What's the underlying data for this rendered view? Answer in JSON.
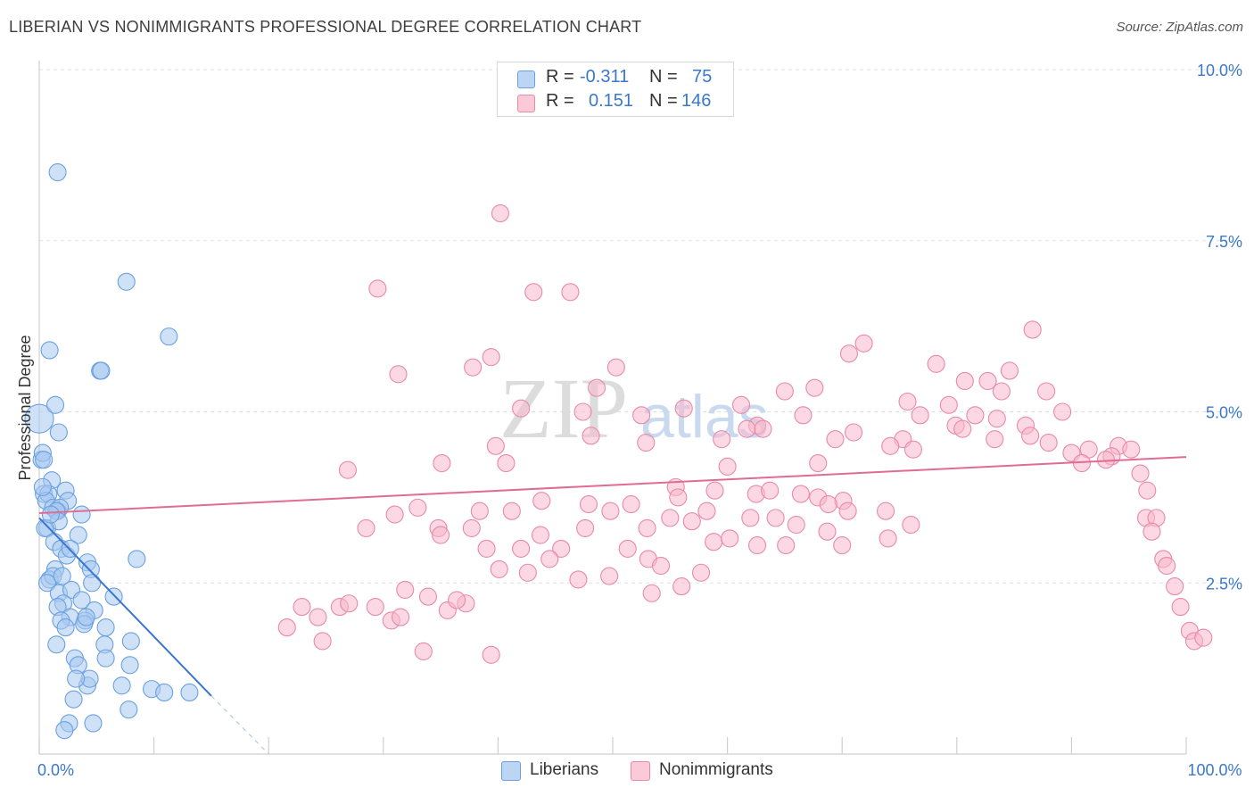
{
  "title": "LIBERIAN VS NONIMMIGRANTS PROFESSIONAL DEGREE CORRELATION CHART",
  "source": "Source: ZipAtlas.com",
  "watermark": {
    "zip": "ZIP",
    "atlas": "atlas"
  },
  "legend": {
    "rows": [
      {
        "r_label": "R =",
        "r_value": "-0.311",
        "n_label": "N =",
        "n_value": "75",
        "color": "#a8c8f0"
      },
      {
        "r_label": "R =",
        "r_value": "0.151",
        "n_label": "N =",
        "n_value": "146",
        "color": "#f8b8cc"
      }
    ]
  },
  "bottom_legend": [
    {
      "label": "Liberians",
      "color": "#a8c8f0"
    },
    {
      "label": "Nonimmigrants",
      "color": "#f8b8cc"
    }
  ],
  "chart_data": {
    "type": "scatter",
    "xlabel": "",
    "ylabel": "Professional Degree",
    "xlim": [
      0,
      100
    ],
    "ylim": [
      0,
      10
    ],
    "x_tick_labels": [
      {
        "value": 0,
        "label": "0.0%"
      },
      {
        "value": 100,
        "label": "100.0%"
      }
    ],
    "y_tick_labels": [
      {
        "value": 2.5,
        "label": "2.5%"
      },
      {
        "value": 5.0,
        "label": "5.0%"
      },
      {
        "value": 7.5,
        "label": "7.5%"
      },
      {
        "value": 10.0,
        "label": "10.0%"
      }
    ],
    "grid": true,
    "series": [
      {
        "name": "Liberians",
        "color": "#6aa0e0",
        "fill": "#a8c8f0",
        "trend": {
          "x": [
            0,
            15
          ],
          "y": [
            3.45,
            0.85
          ],
          "dash_to": [
            20,
            0
          ]
        },
        "points": [
          [
            1.6,
            8.5
          ],
          [
            7.6,
            6.9
          ],
          [
            11.3,
            6.1
          ],
          [
            0.9,
            5.9
          ],
          [
            5.3,
            5.6
          ],
          [
            5.4,
            5.6
          ],
          [
            0.0,
            4.9
          ],
          [
            1.4,
            5.1
          ],
          [
            1.7,
            4.7
          ],
          [
            0.2,
            4.3
          ],
          [
            0.3,
            4.4
          ],
          [
            0.4,
            4.3
          ],
          [
            1.1,
            4.0
          ],
          [
            0.4,
            3.8
          ],
          [
            0.8,
            3.8
          ],
          [
            2.3,
            3.85
          ],
          [
            2.5,
            3.7
          ],
          [
            0.6,
            3.7
          ],
          [
            1.2,
            3.6
          ],
          [
            1.6,
            3.55
          ],
          [
            1.8,
            3.6
          ],
          [
            1.5,
            3.55
          ],
          [
            0.7,
            3.3
          ],
          [
            1.7,
            3.4
          ],
          [
            3.7,
            3.5
          ],
          [
            3.4,
            3.2
          ],
          [
            0.5,
            3.3
          ],
          [
            1.3,
            3.1
          ],
          [
            1.9,
            3.0
          ],
          [
            2.4,
            2.9
          ],
          [
            2.7,
            3.0
          ],
          [
            4.2,
            2.8
          ],
          [
            8.5,
            2.85
          ],
          [
            1.4,
            2.7
          ],
          [
            4.5,
            2.7
          ],
          [
            0.9,
            2.55
          ],
          [
            1.2,
            2.6
          ],
          [
            0.7,
            2.5
          ],
          [
            4.6,
            2.5
          ],
          [
            1.7,
            2.35
          ],
          [
            2.8,
            2.4
          ],
          [
            3.7,
            2.25
          ],
          [
            2.1,
            2.2
          ],
          [
            1.6,
            2.15
          ],
          [
            4.8,
            2.1
          ],
          [
            2.7,
            2.0
          ],
          [
            1.9,
            1.95
          ],
          [
            4.0,
            1.95
          ],
          [
            2.3,
            1.85
          ],
          [
            3.9,
            1.9
          ],
          [
            5.8,
            1.85
          ],
          [
            1.5,
            1.6
          ],
          [
            5.7,
            1.6
          ],
          [
            8.0,
            1.65
          ],
          [
            5.8,
            1.4
          ],
          [
            3.1,
            1.4
          ],
          [
            3.4,
            1.3
          ],
          [
            7.9,
            1.3
          ],
          [
            4.2,
            1.0
          ],
          [
            4.4,
            1.1
          ],
          [
            7.2,
            1.0
          ],
          [
            9.8,
            0.95
          ],
          [
            10.9,
            0.9
          ],
          [
            13.1,
            0.9
          ],
          [
            3.0,
            0.8
          ],
          [
            7.8,
            0.65
          ],
          [
            2.6,
            0.45
          ],
          [
            4.7,
            0.45
          ],
          [
            2.2,
            0.35
          ],
          [
            0.3,
            3.9
          ],
          [
            1.0,
            3.5
          ],
          [
            2.0,
            2.6
          ],
          [
            3.2,
            1.1
          ],
          [
            6.5,
            2.3
          ],
          [
            4.1,
            2.0
          ]
        ]
      },
      {
        "name": "Nonimmigrants",
        "color": "#e88aa8",
        "fill": "#f8b8cc",
        "trend": {
          "x": [
            0,
            100
          ],
          "y": [
            3.52,
            4.34
          ]
        },
        "points": [
          [
            40.2,
            7.9
          ],
          [
            29.5,
            6.8
          ],
          [
            43.1,
            6.75
          ],
          [
            46.3,
            6.75
          ],
          [
            86.6,
            6.2
          ],
          [
            71.9,
            6.0
          ],
          [
            70.6,
            5.85
          ],
          [
            39.4,
            5.8
          ],
          [
            50.3,
            5.65
          ],
          [
            37.8,
            5.65
          ],
          [
            78.2,
            5.7
          ],
          [
            31.3,
            5.55
          ],
          [
            84.6,
            5.6
          ],
          [
            65.0,
            5.3
          ],
          [
            48.6,
            5.35
          ],
          [
            67.6,
            5.35
          ],
          [
            80.7,
            5.45
          ],
          [
            82.7,
            5.45
          ],
          [
            83.9,
            5.3
          ],
          [
            87.8,
            5.3
          ],
          [
            75.7,
            5.15
          ],
          [
            79.3,
            5.1
          ],
          [
            61.2,
            5.1
          ],
          [
            56.2,
            5.05
          ],
          [
            42.0,
            5.05
          ],
          [
            47.4,
            5.0
          ],
          [
            52.5,
            4.95
          ],
          [
            66.6,
            4.95
          ],
          [
            76.8,
            4.95
          ],
          [
            81.6,
            4.95
          ],
          [
            83.5,
            4.9
          ],
          [
            89.2,
            5.0
          ],
          [
            62.6,
            4.8
          ],
          [
            79.9,
            4.8
          ],
          [
            86.0,
            4.8
          ],
          [
            83.3,
            4.6
          ],
          [
            71.0,
            4.7
          ],
          [
            80.5,
            4.75
          ],
          [
            61.7,
            4.75
          ],
          [
            63.1,
            4.75
          ],
          [
            75.3,
            4.6
          ],
          [
            86.4,
            4.65
          ],
          [
            76.2,
            4.45
          ],
          [
            52.9,
            4.55
          ],
          [
            59.5,
            4.6
          ],
          [
            69.4,
            4.6
          ],
          [
            88.0,
            4.55
          ],
          [
            94.1,
            4.5
          ],
          [
            91.5,
            4.45
          ],
          [
            93.5,
            4.35
          ],
          [
            90.0,
            4.4
          ],
          [
            95.2,
            4.45
          ],
          [
            93.0,
            4.3
          ],
          [
            96.0,
            4.1
          ],
          [
            90.9,
            4.25
          ],
          [
            74.2,
            4.5
          ],
          [
            60.0,
            4.2
          ],
          [
            67.9,
            4.25
          ],
          [
            39.8,
            4.5
          ],
          [
            48.1,
            4.65
          ],
          [
            40.7,
            4.25
          ],
          [
            35.1,
            4.25
          ],
          [
            26.9,
            4.15
          ],
          [
            55.5,
            3.9
          ],
          [
            62.5,
            3.8
          ],
          [
            58.9,
            3.85
          ],
          [
            63.7,
            3.85
          ],
          [
            66.4,
            3.8
          ],
          [
            67.9,
            3.75
          ],
          [
            70.1,
            3.7
          ],
          [
            68.8,
            3.65
          ],
          [
            96.6,
            3.85
          ],
          [
            70.5,
            3.55
          ],
          [
            73.8,
            3.55
          ],
          [
            62.0,
            3.45
          ],
          [
            55.7,
            3.75
          ],
          [
            51.6,
            3.65
          ],
          [
            47.9,
            3.65
          ],
          [
            43.8,
            3.7
          ],
          [
            33.0,
            3.6
          ],
          [
            38.4,
            3.55
          ],
          [
            34.8,
            3.3
          ],
          [
            31.0,
            3.5
          ],
          [
            41.2,
            3.55
          ],
          [
            49.8,
            3.55
          ],
          [
            56.9,
            3.4
          ],
          [
            58.2,
            3.55
          ],
          [
            64.2,
            3.45
          ],
          [
            66.0,
            3.35
          ],
          [
            76.0,
            3.35
          ],
          [
            68.7,
            3.25
          ],
          [
            53.0,
            3.3
          ],
          [
            55.0,
            3.45
          ],
          [
            47.6,
            3.3
          ],
          [
            43.7,
            3.2
          ],
          [
            45.5,
            3.0
          ],
          [
            37.7,
            3.3
          ],
          [
            35.0,
            3.2
          ],
          [
            28.5,
            3.3
          ],
          [
            39.0,
            3.0
          ],
          [
            42.0,
            3.0
          ],
          [
            44.5,
            2.85
          ],
          [
            51.3,
            3.0
          ],
          [
            53.1,
            2.85
          ],
          [
            54.2,
            2.75
          ],
          [
            57.7,
            2.65
          ],
          [
            58.8,
            3.1
          ],
          [
            62.6,
            3.05
          ],
          [
            60.2,
            3.15
          ],
          [
            65.1,
            3.05
          ],
          [
            70.0,
            3.05
          ],
          [
            74.0,
            3.15
          ],
          [
            42.6,
            2.65
          ],
          [
            47.0,
            2.55
          ],
          [
            49.7,
            2.6
          ],
          [
            53.4,
            2.35
          ],
          [
            56.0,
            2.45
          ],
          [
            31.9,
            2.4
          ],
          [
            33.9,
            2.3
          ],
          [
            37.2,
            2.2
          ],
          [
            35.6,
            2.1
          ],
          [
            26.2,
            2.15
          ],
          [
            27.0,
            2.2
          ],
          [
            29.3,
            2.15
          ],
          [
            30.7,
            1.95
          ],
          [
            31.5,
            2.0
          ],
          [
            24.3,
            2.0
          ],
          [
            22.9,
            2.15
          ],
          [
            21.6,
            1.85
          ],
          [
            24.7,
            1.65
          ],
          [
            33.5,
            1.5
          ],
          [
            39.4,
            1.45
          ],
          [
            36.4,
            2.25
          ],
          [
            40.1,
            2.7
          ],
          [
            96.5,
            3.45
          ],
          [
            97.4,
            3.45
          ],
          [
            97.0,
            3.25
          ],
          [
            98.0,
            2.85
          ],
          [
            98.3,
            2.75
          ],
          [
            99.0,
            2.45
          ],
          [
            99.5,
            2.15
          ],
          [
            100.3,
            1.8
          ],
          [
            100.7,
            1.65
          ],
          [
            101.5,
            1.7
          ]
        ]
      }
    ]
  }
}
